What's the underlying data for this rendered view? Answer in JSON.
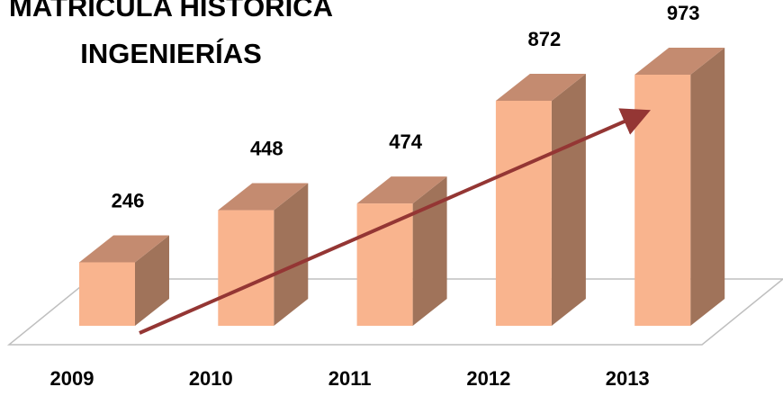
{
  "chart_data": {
    "type": "bar3d",
    "title": [
      "MATRÍCULA HISTÓRICA",
      "INGENIERÍAS"
    ],
    "categories": [
      "2009",
      "2010",
      "2011",
      "2012",
      "2013"
    ],
    "values": [
      246,
      448,
      474,
      872,
      973
    ],
    "color": "#f9b48e"
  }
}
